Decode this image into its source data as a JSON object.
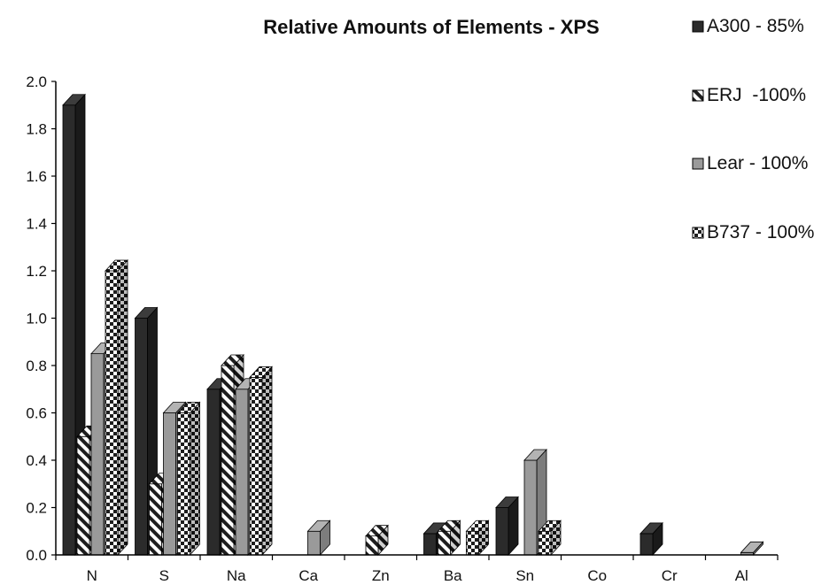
{
  "chart_data": {
    "type": "bar",
    "title": "Relative Amounts of Elements - XPS",
    "xlabel": "",
    "ylabel": "",
    "ylim": [
      0,
      2.0
    ],
    "yticks": [
      "0.0",
      "0.2",
      "0.4",
      "0.6",
      "0.8",
      "1.0",
      "1.2",
      "1.4",
      "1.6",
      "1.8",
      "2.0"
    ],
    "grid": false,
    "legend_position": "right",
    "categories": [
      "N",
      "S",
      "Na",
      "Ca",
      "Zn",
      "Ba",
      "Sn",
      "Co",
      "Cr",
      "Al"
    ],
    "series": [
      {
        "name": "A300 - 85%",
        "pattern": "solid-dark",
        "color": "#2b2b2b",
        "values": [
          1.9,
          1.0,
          0.7,
          0,
          0,
          0.09,
          0.2,
          0,
          0.09,
          0
        ]
      },
      {
        "name": "ERJ  -100%",
        "pattern": "diagonal-stripes",
        "color": "#222222",
        "values": [
          0.5,
          0.3,
          0.8,
          0,
          0.08,
          0.1,
          0,
          0,
          0,
          0
        ]
      },
      {
        "name": "Lear - 100%",
        "pattern": "solid-gray",
        "color": "#9a9a9a",
        "values": [
          0.85,
          0.6,
          0.7,
          0.1,
          0,
          0,
          0.4,
          0,
          0,
          0.01
        ]
      },
      {
        "name": "B737 - 100%",
        "pattern": "checkerboard",
        "color": "#222222",
        "values": [
          1.2,
          0.6,
          0.75,
          0,
          0,
          0.1,
          0.1,
          0,
          0,
          0
        ]
      }
    ]
  }
}
